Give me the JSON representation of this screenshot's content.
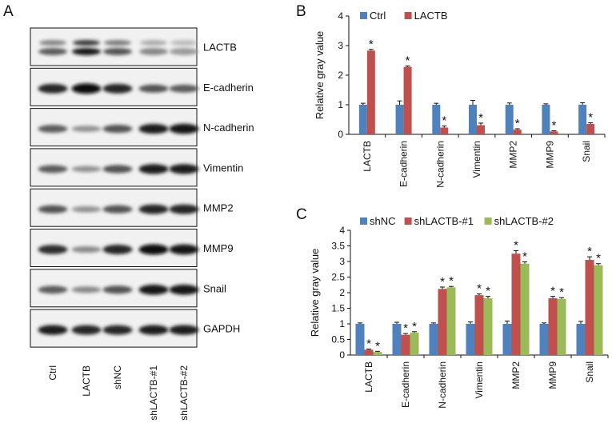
{
  "panel_a": {
    "letter": "A",
    "blots": [
      {
        "label": "LACTB",
        "bands": [
          0.55,
          0.95,
          0.6,
          0.3,
          0.2
        ],
        "pattern": "double"
      },
      {
        "label": "E-cadherin",
        "bands": [
          0.85,
          1.0,
          0.85,
          0.6,
          0.55
        ],
        "pattern": "single"
      },
      {
        "label": "N-cadherin",
        "bands": [
          0.55,
          0.25,
          0.6,
          0.9,
          0.95
        ],
        "pattern": "single"
      },
      {
        "label": "Vimentin",
        "bands": [
          0.55,
          0.25,
          0.6,
          0.9,
          0.9
        ],
        "pattern": "single"
      },
      {
        "label": "MMP2",
        "bands": [
          0.6,
          0.25,
          0.6,
          0.85,
          0.85
        ],
        "pattern": "single"
      },
      {
        "label": "MMP9",
        "bands": [
          0.8,
          0.3,
          0.85,
          1.0,
          0.95
        ],
        "pattern": "single"
      },
      {
        "label": "Snail",
        "bands": [
          0.55,
          0.3,
          0.6,
          0.95,
          0.95
        ],
        "pattern": "single"
      },
      {
        "label": "GAPDH",
        "bands": [
          0.9,
          0.85,
          0.85,
          0.9,
          0.9
        ],
        "pattern": "single"
      }
    ],
    "lanes": [
      "Ctrl",
      "LACTB",
      "shNC",
      "shLACTB-#1",
      "shLACTB-#2"
    ]
  },
  "chart_data": [
    {
      "panel": "B",
      "type": "bar",
      "title": "",
      "xlabel": "",
      "ylabel": "Relative gray value",
      "ylim": [
        0,
        4
      ],
      "yticks": [
        "0",
        "1",
        "2",
        "3",
        "4"
      ],
      "grid": false,
      "legend_position": "top",
      "categories": [
        "LACTB",
        "E-cadherin",
        "N-cadherin",
        "Vimentin",
        "MMP2",
        "MMP9",
        "Snail"
      ],
      "series": [
        {
          "name": "Ctrl",
          "color": "#4f81bd",
          "values": [
            1.0,
            1.0,
            1.0,
            1.0,
            1.0,
            1.0,
            1.0
          ],
          "errors": [
            0.05,
            0.13,
            0.05,
            0.15,
            0.06,
            0.03,
            0.07
          ]
        },
        {
          "name": "LACTB",
          "color": "#c0504d",
          "values": [
            2.83,
            2.28,
            0.23,
            0.31,
            0.16,
            0.1,
            0.35
          ],
          "errors": [
            0.04,
            0.03,
            0.05,
            0.07,
            0.03,
            0.02,
            0.04
          ]
        }
      ],
      "significance": [
        "*",
        "*",
        "*",
        "*",
        "*",
        "*",
        "*"
      ]
    },
    {
      "panel": "C",
      "type": "bar",
      "title": "",
      "xlabel": "",
      "ylabel": "Relative gray value",
      "ylim": [
        0,
        4
      ],
      "yticks": [
        "0",
        "0.5",
        "1",
        "1.5",
        "2",
        "2.5",
        "3",
        "3.5",
        "4"
      ],
      "grid": false,
      "legend_position": "top",
      "categories": [
        "LACTB",
        "E-cadherin",
        "N-cadherin",
        "Vimentin",
        "MMP2",
        "MMP9",
        "Snail"
      ],
      "series": [
        {
          "name": "shNC",
          "color": "#4f81bd",
          "values": [
            1.0,
            1.0,
            1.0,
            1.0,
            1.0,
            1.0,
            1.0
          ],
          "errors": [
            0.03,
            0.05,
            0.03,
            0.06,
            0.09,
            0.03,
            0.08
          ]
        },
        {
          "name": "shLACTB-#1",
          "color": "#c0504d",
          "values": [
            0.17,
            0.65,
            2.12,
            1.92,
            3.25,
            1.82,
            3.05
          ],
          "errors": [
            0.02,
            0.04,
            0.06,
            0.04,
            0.1,
            0.06,
            0.1
          ]
        },
        {
          "name": "shLACTB-#2",
          "color": "#9bbb59",
          "values": [
            0.1,
            0.72,
            2.17,
            1.82,
            2.93,
            1.8,
            2.88
          ],
          "errors": [
            0.02,
            0.03,
            0.03,
            0.06,
            0.06,
            0.04,
            0.05
          ]
        }
      ],
      "significance_series": [
        1,
        2
      ],
      "significance": "*"
    }
  ]
}
